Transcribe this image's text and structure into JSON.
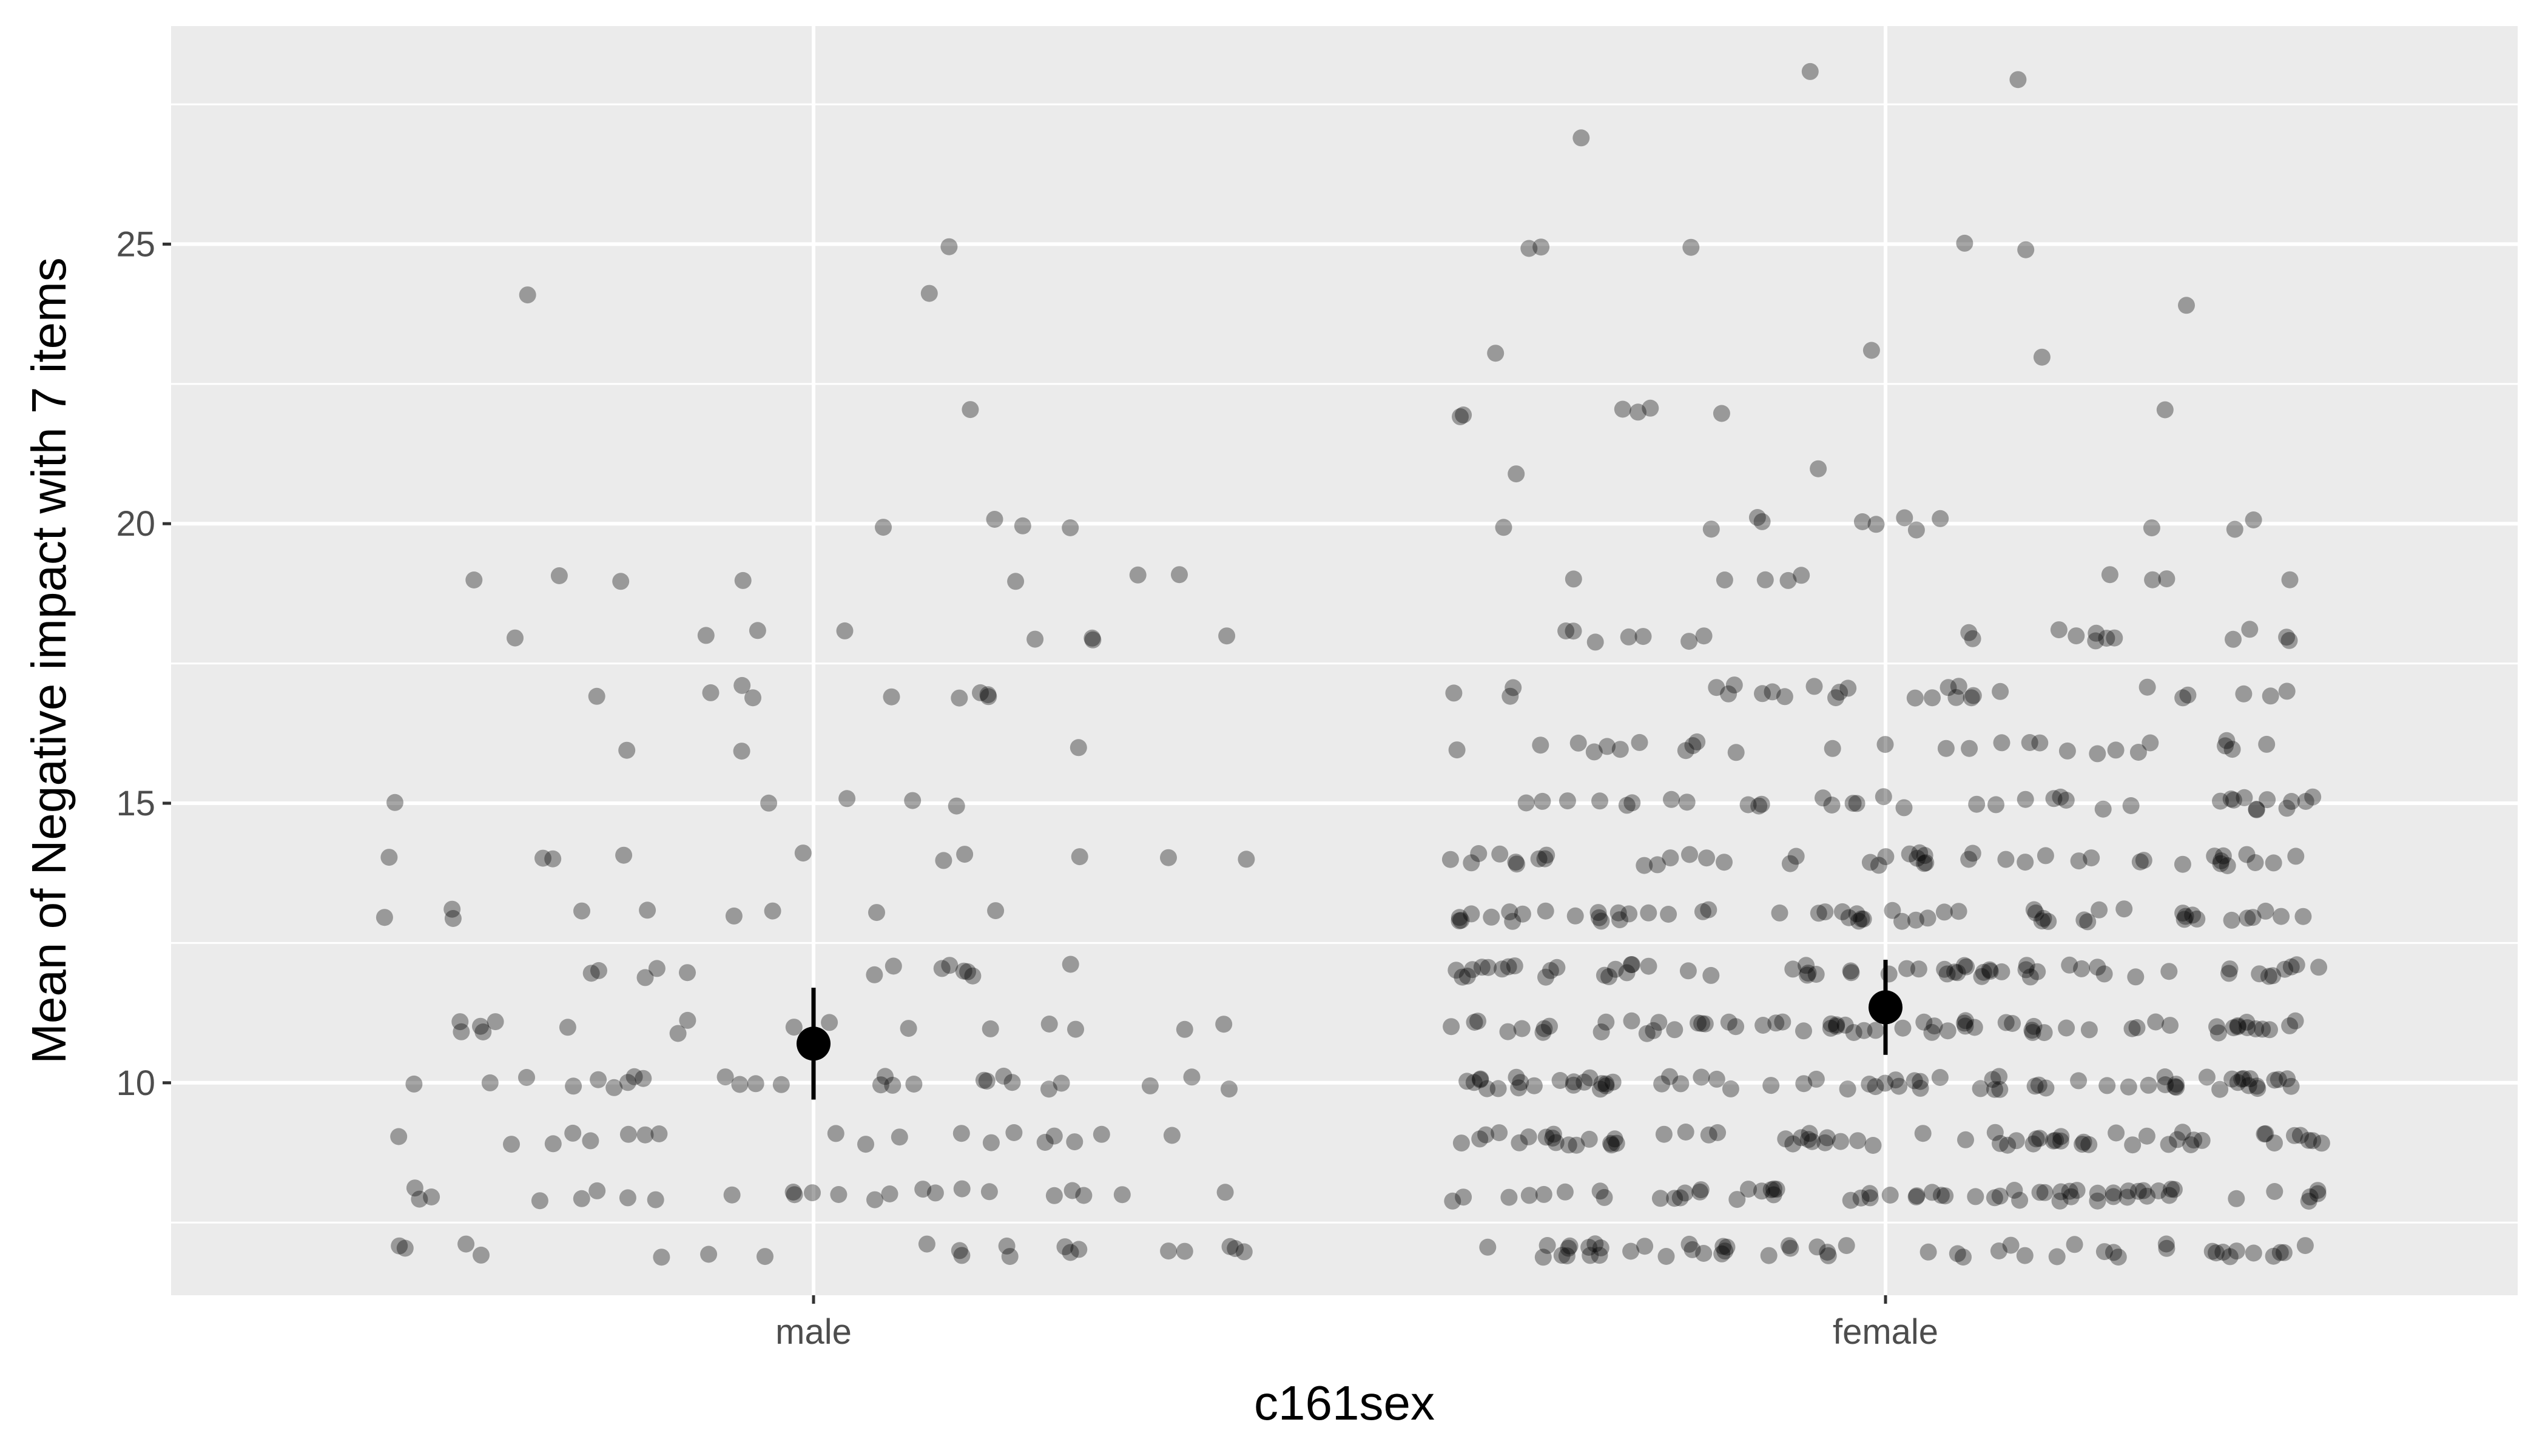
{
  "chart_data": {
    "type": "scatter",
    "subtype": "jittered strip plot with mean and error bars",
    "xlabel": "c161sex",
    "ylabel": "Mean of Negative impact with 7 items",
    "categories": [
      "male",
      "female"
    ],
    "ylim": [
      6.2,
      28.9
    ],
    "y_ticks": [
      10,
      15,
      20,
      25
    ],
    "grid": true,
    "legend": "none",
    "colors": {
      "panel": "#EBEBEB",
      "grid": "#FFFFFF",
      "point": "#000000",
      "mean": "#000000",
      "tick_text": "#4D4D4D"
    },
    "point_alpha": 0.35,
    "summary": [
      {
        "category": "male",
        "mean": 10.7,
        "lower": 9.7,
        "upper": 11.7
      },
      {
        "category": "female",
        "mean": 11.35,
        "lower": 10.5,
        "upper": 12.2
      }
    ],
    "points": [
      {
        "category": "male",
        "y": [
          25,
          24,
          22,
          24,
          20,
          20,
          20,
          20,
          19,
          19,
          19,
          19,
          19,
          19,
          19,
          18,
          18,
          18,
          18,
          18,
          18,
          18,
          18,
          17,
          17,
          17,
          17,
          17,
          17,
          17,
          17,
          17,
          16,
          16,
          16,
          15,
          15,
          15,
          15,
          15,
          14,
          14,
          14,
          14,
          14,
          14,
          14,
          14,
          14,
          14,
          13,
          13,
          13,
          13,
          13,
          13,
          13,
          13,
          13,
          12,
          12,
          12,
          12,
          12,
          12,
          12,
          12,
          12,
          12,
          12,
          12,
          12,
          11,
          11,
          11,
          11,
          11,
          11,
          11,
          11,
          11,
          11,
          11,
          11,
          11,
          11,
          11,
          11,
          10,
          10,
          10,
          10,
          10,
          10,
          10,
          10,
          10,
          10,
          10,
          10,
          10,
          10,
          10,
          10,
          10,
          10,
          10,
          10,
          10,
          10,
          10,
          10,
          10,
          10,
          9,
          9,
          9,
          9,
          9,
          9,
          9,
          9,
          9,
          9,
          9,
          9,
          9,
          9,
          9,
          9,
          9,
          9,
          9,
          8,
          8,
          8,
          8,
          8,
          8,
          8,
          8,
          8,
          8,
          8,
          8,
          8,
          8,
          8,
          8,
          8,
          8,
          8,
          8,
          8,
          8,
          8,
          8,
          7,
          7,
          7,
          7,
          7,
          7,
          7,
          7,
          7,
          7,
          7,
          7,
          7,
          7,
          7,
          7,
          7,
          7,
          7,
          7
        ]
      },
      {
        "category": "female",
        "y": [
          28,
          28,
          27,
          25,
          25,
          25,
          25,
          25,
          24,
          23,
          23,
          23,
          22,
          22,
          22,
          22,
          22,
          22,
          22,
          21,
          21,
          20,
          20,
          20,
          20,
          20,
          20,
          20,
          20,
          20,
          20,
          20,
          20,
          19,
          19,
          19,
          19,
          19,
          19,
          19,
          19,
          19,
          18,
          18,
          18,
          18,
          18,
          18,
          18,
          18,
          18,
          18,
          18,
          18,
          18,
          18,
          18,
          18,
          18,
          18,
          18,
          17,
          17,
          17,
          17,
          17,
          17,
          17,
          17,
          17,
          17,
          17,
          17,
          17,
          17,
          17,
          17,
          17,
          17,
          17,
          17,
          17,
          17,
          17,
          17,
          17,
          17,
          17,
          16,
          16,
          16,
          16,
          16,
          16,
          16,
          16,
          16,
          16,
          16,
          16,
          16,
          16,
          16,
          16,
          16,
          16,
          16,
          16,
          16,
          16,
          16,
          16,
          16,
          16,
          16,
          15,
          15,
          15,
          15,
          15,
          15,
          15,
          15,
          15,
          15,
          15,
          15,
          15,
          15,
          15,
          15,
          15,
          15,
          15,
          15,
          15,
          15,
          15,
          15,
          15,
          15,
          15,
          15,
          15,
          15,
          15,
          15,
          15,
          15,
          15,
          15,
          14,
          14,
          14,
          14,
          14,
          14,
          14,
          14,
          14,
          14,
          14,
          14,
          14,
          14,
          14,
          14,
          14,
          14,
          14,
          14,
          14,
          14,
          14,
          14,
          14,
          14,
          14,
          14,
          14,
          14,
          14,
          14,
          14,
          14,
          14,
          14,
          14,
          14,
          14,
          14,
          14,
          14,
          14,
          14,
          14,
          13,
          13,
          13,
          13,
          13,
          13,
          13,
          13,
          13,
          13,
          13,
          13,
          13,
          13,
          13,
          13,
          13,
          13,
          13,
          13,
          13,
          13,
          13,
          13,
          13,
          13,
          13,
          13,
          13,
          13,
          13,
          13,
          13,
          13,
          13,
          13,
          13,
          13,
          13,
          13,
          13,
          13,
          13,
          13,
          13,
          13,
          13,
          13,
          13,
          13,
          13,
          13,
          13,
          13,
          13,
          12,
          12,
          12,
          12,
          12,
          12,
          12,
          12,
          12,
          12,
          12,
          12,
          12,
          12,
          12,
          12,
          12,
          12,
          12,
          12,
          12,
          12,
          12,
          12,
          12,
          12,
          12,
          12,
          12,
          12,
          12,
          12,
          12,
          12,
          12,
          12,
          12,
          12,
          12,
          12,
          12,
          12,
          12,
          12,
          12,
          12,
          12,
          12,
          12,
          12,
          12,
          12,
          12,
          12,
          12,
          12,
          12,
          12,
          12,
          12,
          12,
          11,
          11,
          11,
          11,
          11,
          11,
          11,
          11,
          11,
          11,
          11,
          11,
          11,
          11,
          11,
          11,
          11,
          11,
          11,
          11,
          11,
          11,
          11,
          11,
          11,
          11,
          11,
          11,
          11,
          11,
          11,
          11,
          11,
          11,
          11,
          11,
          11,
          11,
          11,
          11,
          11,
          11,
          11,
          11,
          11,
          11,
          11,
          11,
          11,
          11,
          11,
          11,
          11,
          11,
          11,
          11,
          11,
          11,
          11,
          11,
          11,
          11,
          11,
          11,
          11,
          10,
          10,
          10,
          10,
          10,
          10,
          10,
          10,
          10,
          10,
          10,
          10,
          10,
          10,
          10,
          10,
          10,
          10,
          10,
          10,
          10,
          10,
          10,
          10,
          10,
          10,
          10,
          10,
          10,
          10,
          10,
          10,
          10,
          10,
          10,
          10,
          10,
          10,
          10,
          10,
          10,
          10,
          10,
          10,
          10,
          10,
          10,
          10,
          10,
          10,
          10,
          10,
          10,
          10,
          10,
          10,
          10,
          10,
          10,
          10,
          10,
          10,
          10,
          10,
          10,
          10,
          10,
          10,
          10,
          10,
          9,
          9,
          9,
          9,
          9,
          9,
          9,
          9,
          9,
          9,
          9,
          9,
          9,
          9,
          9,
          9,
          9,
          9,
          9,
          9,
          9,
          9,
          9,
          9,
          9,
          9,
          9,
          9,
          9,
          9,
          9,
          9,
          9,
          9,
          9,
          9,
          9,
          9,
          9,
          9,
          9,
          9,
          9,
          9,
          9,
          9,
          9,
          9,
          9,
          9,
          9,
          9,
          9,
          9,
          9,
          9,
          9,
          9,
          9,
          9,
          9,
          9,
          9,
          9,
          9,
          8,
          8,
          8,
          8,
          8,
          8,
          8,
          8,
          8,
          8,
          8,
          8,
          8,
          8,
          8,
          8,
          8,
          8,
          8,
          8,
          8,
          8,
          8,
          8,
          8,
          8,
          8,
          8,
          8,
          8,
          8,
          8,
          8,
          8,
          8,
          8,
          8,
          8,
          8,
          8,
          8,
          8,
          8,
          8,
          8,
          8,
          8,
          8,
          8,
          8,
          8,
          8,
          8,
          8,
          8,
          8,
          8,
          8,
          8,
          8,
          8,
          8,
          7,
          7,
          7,
          7,
          7,
          7,
          7,
          7,
          7,
          7,
          7,
          7,
          7,
          7,
          7,
          7,
          7,
          7,
          7,
          7,
          7,
          7,
          7,
          7,
          7,
          7,
          7,
          7,
          7,
          7,
          7,
          7,
          7,
          7,
          7,
          7,
          7,
          7,
          7,
          7,
          7,
          7,
          7,
          7,
          7,
          7,
          7,
          7,
          7,
          7,
          7,
          7
        ]
      }
    ]
  }
}
